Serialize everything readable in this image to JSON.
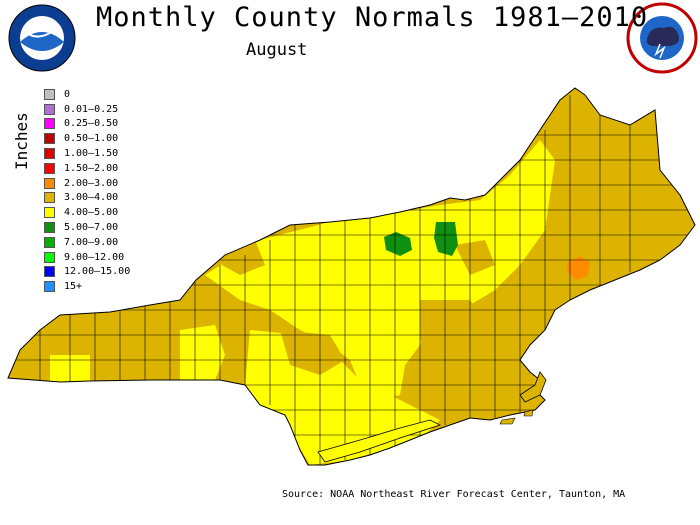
{
  "title": "Monthly County Normals 1981–2010",
  "subtitle": "August",
  "units_label": "Inches",
  "source": "Source: NOAA Northeast River Forecast Center, Taunton, MA",
  "logos": {
    "noaa": "NOAA",
    "nws": "NATIONAL WEATHER SERVICE"
  },
  "legend": [
    {
      "label": "0",
      "color": "#c0c0c0"
    },
    {
      "label": "0.01–0.25",
      "color": "#b070d0"
    },
    {
      "label": "0.25–0.50",
      "color": "#ff00ff"
    },
    {
      "label": "0.50–1.00",
      "color": "#c00000"
    },
    {
      "label": "1.00–1.50",
      "color": "#e00000"
    },
    {
      "label": "1.50–2.00",
      "color": "#ff0000"
    },
    {
      "label": "2.00–3.00",
      "color": "#ff8c00"
    },
    {
      "label": "3.00–4.00",
      "color": "#dcb400"
    },
    {
      "label": "4.00–5.00",
      "color": "#ffff00"
    },
    {
      "label": "5.00–7.00",
      "color": "#109010"
    },
    {
      "label": "7.00–9.00",
      "color": "#00b000"
    },
    {
      "label": "9.00–12.00",
      "color": "#00ff00"
    },
    {
      "label": "12.00–15.00",
      "color": "#0000ff"
    },
    {
      "label": "15+",
      "color": "#1e90ff"
    }
  ]
}
